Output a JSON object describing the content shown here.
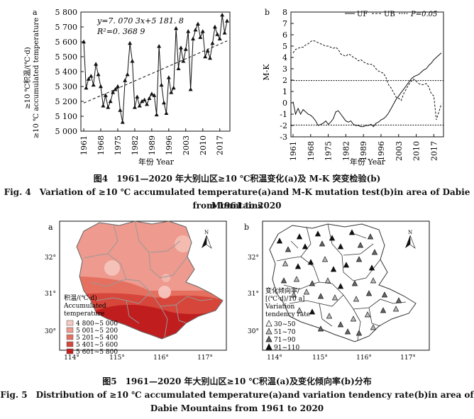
{
  "chart_data": [
    {
      "type": "line",
      "panel_label": "a",
      "ylabel_cn": "≥10 ℃积温/(℃·d)",
      "ylabel_en": "≥10 ℃ accumulated temperature",
      "xlabel": "年份 Year",
      "ylim": [
        5000,
        5800
      ],
      "yticks": [
        "5 000",
        "5 100",
        "5 200",
        "5 300",
        "5 400",
        "5 500",
        "5 600",
        "5 700",
        "5 800"
      ],
      "xticks": [
        "1961",
        "1968",
        "1975",
        "1982",
        "1989",
        "1996",
        "2003",
        "2010",
        "2017"
      ],
      "equation": "y=7. 070 3x+5 181. 8",
      "r2": "R²=0. 368 9",
      "trend": {
        "slope": 7.0703,
        "intercept": 5181.8
      },
      "x": [
        1961,
        1962,
        1963,
        1964,
        1965,
        1966,
        1967,
        1968,
        1969,
        1970,
        1971,
        1972,
        1973,
        1974,
        1975,
        1976,
        1977,
        1978,
        1979,
        1980,
        1981,
        1982,
        1983,
        1984,
        1985,
        1986,
        1987,
        1988,
        1989,
        1990,
        1991,
        1992,
        1993,
        1994,
        1995,
        1996,
        1997,
        1998,
        1999,
        2000,
        2001,
        2002,
        2003,
        2004,
        2005,
        2006,
        2007,
        2008,
        2009,
        2010,
        2011,
        2012,
        2013,
        2014,
        2015,
        2016,
        2017,
        2018,
        2019,
        2020
      ],
      "values": [
        5600,
        5290,
        5350,
        5370,
        5310,
        5450,
        5380,
        5300,
        5170,
        5240,
        5160,
        5200,
        5260,
        5280,
        5300,
        5140,
        5060,
        5340,
        5380,
        5590,
        5470,
        5160,
        5230,
        5170,
        5200,
        5210,
        5180,
        5220,
        5250,
        5240,
        5110,
        5570,
        5310,
        5190,
        5120,
        5360,
        5260,
        5290,
        5690,
        5420,
        5560,
        5470,
        5550,
        5670,
        5280,
        5620,
        5680,
        5720,
        5630,
        5670,
        5500,
        5540,
        5490,
        5590,
        5700,
        5650,
        5620,
        5780,
        5660,
        5740
      ]
    },
    {
      "type": "line",
      "panel_label": "b",
      "ylabel": "M-K",
      "xlabel": "年份 Year",
      "ylim": [
        -3,
        8
      ],
      "yticks": [
        "-3",
        "-2",
        "-1",
        "0",
        "1",
        "2",
        "3",
        "4",
        "5",
        "6",
        "7",
        "8"
      ],
      "xticks": [
        "1961",
        "1968",
        "1975",
        "1982",
        "1989",
        "1996",
        "2003",
        "2010",
        "2017"
      ],
      "legend": [
        "UF",
        "UB",
        "P=0.05"
      ],
      "threshold": [
        1.96,
        -1.96
      ],
      "uf_x": [
        1961,
        1962,
        1963,
        1964,
        1965,
        1966,
        1967,
        1968,
        1969,
        1970,
        1971,
        1972,
        1973,
        1974,
        1975,
        1976,
        1977,
        1978,
        1979,
        1980,
        1981,
        1982,
        1983,
        1984,
        1985,
        1986,
        1987,
        1988,
        1989,
        1990,
        1991,
        1992,
        1993,
        1994,
        1995,
        1996,
        1997,
        1998,
        1999,
        2000,
        2001,
        2002,
        2003,
        2004,
        2005,
        2006,
        2007,
        2008,
        2009,
        2010,
        2011,
        2012,
        2013,
        2014,
        2015,
        2016,
        2017,
        2018,
        2019,
        2020
      ],
      "uf": [
        0.1,
        -1.0,
        -0.5,
        -1.0,
        -0.6,
        -0.8,
        -1.0,
        -1.1,
        -1.3,
        -1.6,
        -2.0,
        -1.9,
        -1.8,
        -1.6,
        -1.9,
        -1.7,
        -1.4,
        -0.8,
        -0.7,
        -1.0,
        -1.3,
        -1.6,
        -1.7,
        -1.6,
        -1.9,
        -2.0,
        -2.0,
        -2.1,
        -2.1,
        -2.0,
        -2.0,
        -1.9,
        -2.1,
        -1.8,
        -1.7,
        -1.5,
        -1.4,
        -1.2,
        -0.9,
        -0.5,
        -0.1,
        0.3,
        0.6,
        0.9,
        1.2,
        1.5,
        1.8,
        2.1,
        2.3,
        2.4,
        2.5,
        2.7,
        2.9,
        3.0,
        3.3,
        3.5,
        3.8,
        4.0,
        4.2,
        4.4
      ],
      "ub": [
        4.4,
        4.7,
        4.8,
        4.9,
        4.9,
        5.1,
        5.2,
        5.4,
        5.5,
        5.4,
        5.3,
        5.2,
        5.1,
        5.0,
        5.0,
        4.9,
        4.8,
        4.9,
        4.7,
        4.3,
        4.2,
        4.1,
        4.3,
        4.2,
        4.0,
        3.9,
        3.7,
        3.8,
        3.6,
        3.5,
        3.4,
        3.4,
        3.3,
        3.0,
        2.8,
        2.7,
        2.6,
        2.2,
        1.6,
        1.3,
        0.9,
        0.5,
        0.4,
        0.2,
        0.8,
        1.2,
        1.6,
        1.9,
        2.1,
        1.9,
        1.7,
        1.6,
        1.6,
        1.7,
        1.4,
        0.8,
        0.6,
        -1.5,
        -0.8,
        -0.1
      ]
    },
    {
      "type": "map",
      "panel_label": "a",
      "legend_title": [
        "积温/(℃·d)",
        "Accumulated",
        "temperature"
      ],
      "legend": [
        {
          "label": "4 800~5 000",
          "color": "#f6c9c1"
        },
        {
          "label": "5 001~5 200",
          "color": "#ee9a8e"
        },
        {
          "label": "5 201~5 400",
          "color": "#e5705f"
        },
        {
          "label": "5 401~5 600",
          "color": "#d7463a"
        },
        {
          "label": "5 601~5 800",
          "color": "#c01d1e"
        }
      ],
      "xticks": [
        "114°",
        "115°",
        "116°",
        "117°"
      ],
      "yticks": [
        "32°",
        "31°",
        "30°"
      ],
      "north": "N"
    },
    {
      "type": "map",
      "panel_label": "b",
      "legend_title": [
        "变化倾向率/",
        "[(℃·d)/10 a]",
        "Variation",
        "tendency rate"
      ],
      "legend": [
        "30~50",
        "51~70",
        "71~90",
        "91~110"
      ],
      "xticks": [
        "114°",
        "115°",
        "116°",
        "117°"
      ],
      "yticks": [
        "32°",
        "31°",
        "30°"
      ],
      "north": "N"
    }
  ],
  "captions": {
    "fig4_cn": "图4　1961—2020 年大别山区≥10 ℃积温变化(a)及 M-K 突变检验(b)",
    "fig4_en_1": "Fig. 4　Variation of ≥10 ℃ accumulated temperature(a)and M-K mutation test(b)in area of Dabie Mountains",
    "fig4_en_2": "from 1961 to 2020",
    "fig5_cn": "图5　1961—2020 年大别山区≥10 ℃积温(a)及变化倾向率(b)分布",
    "fig5_en_1": "Fig. 5　Distribution of ≥10 ℃ accumulated temperature(a)and variation tendency rate(b)in area of",
    "fig5_en_2": "Dabie Mountains from 1961 to 2020"
  }
}
